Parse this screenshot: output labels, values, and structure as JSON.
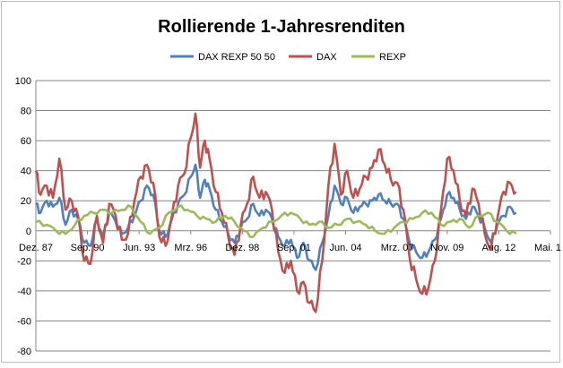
{
  "chart_data": {
    "type": "line",
    "title": "Rollierende 1-Jahresrenditen",
    "xlabel": "",
    "ylabel": "",
    "ylim": [
      -80,
      100
    ],
    "y_ticks": [
      -80,
      -60,
      -40,
      -20,
      0,
      20,
      40,
      60,
      80,
      100
    ],
    "x_range": [
      1987.92,
      2015.33
    ],
    "x_ticks": [
      {
        "label": "Dez. 87",
        "x": 1987.92
      },
      {
        "label": "Sep. 90",
        "x": 1990.67
      },
      {
        "label": "Jun. 93",
        "x": 1993.42
      },
      {
        "label": "Mrz. 96",
        "x": 1996.17
      },
      {
        "label": "Dez. 98",
        "x": 1998.92
      },
      {
        "label": "Sep. 01",
        "x": 2001.67
      },
      {
        "label": "Jun. 04",
        "x": 2004.42
      },
      {
        "label": "Mrz. 07",
        "x": 2007.17
      },
      {
        "label": "Nov. 09",
        "x": 2009.83
      },
      {
        "label": "Aug. 12",
        "x": 2012.58
      },
      {
        "label": "Mai. 15",
        "x": 2015.33
      }
    ],
    "grid": true,
    "legend_position": "top",
    "series": [
      {
        "name": "DAX REXP 50 50",
        "color": "#4f81bd",
        "x": [
          1987.92,
          1988.17,
          1988.5,
          1988.83,
          1989.17,
          1989.5,
          1989.83,
          1990.17,
          1990.5,
          1990.83,
          1991.17,
          1991.5,
          1991.83,
          1992.17,
          1992.5,
          1992.83,
          1993.17,
          1993.5,
          1993.83,
          1994.17,
          1994.5,
          1994.83,
          1995.17,
          1995.5,
          1995.83,
          1996.17,
          1996.42,
          1996.67,
          1996.92,
          1997.17,
          1997.5,
          1997.83,
          1998.17,
          1998.5,
          1998.83,
          1999.17,
          1999.5,
          1999.83,
          2000.17,
          2000.5,
          2000.83,
          2001.17,
          2001.5,
          2001.83,
          2002.17,
          2002.5,
          2002.83,
          2003.17,
          2003.5,
          2003.83,
          2004.17,
          2004.5,
          2004.83,
          2005.17,
          2005.5,
          2005.83,
          2006.17,
          2006.5,
          2006.83,
          2007.17,
          2007.5,
          2007.83,
          2008.17,
          2008.5,
          2008.83,
          2009.17,
          2009.5,
          2009.83,
          2010.17,
          2010.5,
          2010.83,
          2011.17,
          2011.5,
          2011.83,
          2012.17,
          2012.5,
          2012.83,
          2013.17,
          2013.5
        ],
        "values": [
          18,
          12,
          20,
          16,
          22,
          4,
          14,
          8,
          -8,
          -10,
          8,
          -4,
          12,
          6,
          -2,
          2,
          10,
          20,
          30,
          24,
          0,
          -4,
          8,
          18,
          24,
          36,
          44,
          22,
          34,
          28,
          14,
          6,
          -2,
          -8,
          2,
          8,
          18,
          10,
          14,
          8,
          -4,
          -10,
          -6,
          -18,
          -8,
          -20,
          -26,
          -8,
          10,
          30,
          18,
          22,
          12,
          16,
          18,
          20,
          24,
          20,
          18,
          18,
          8,
          -8,
          -14,
          -18,
          -14,
          -6,
          8,
          24,
          22,
          14,
          8,
          16,
          10,
          2,
          -8,
          4,
          10,
          16,
          12
        ]
      },
      {
        "name": "DAX",
        "color": "#c0504d",
        "x": [
          1987.92,
          1988.17,
          1988.5,
          1988.83,
          1989.17,
          1989.5,
          1989.83,
          1990.17,
          1990.5,
          1990.83,
          1991.17,
          1991.5,
          1991.83,
          1992.17,
          1992.5,
          1992.83,
          1993.17,
          1993.5,
          1993.83,
          1994.17,
          1994.5,
          1994.83,
          1995.17,
          1995.5,
          1995.83,
          1996.17,
          1996.42,
          1996.67,
          1996.92,
          1997.17,
          1997.5,
          1997.83,
          1998.17,
          1998.5,
          1998.83,
          1999.17,
          1999.5,
          1999.83,
          2000.17,
          2000.5,
          2000.83,
          2001.17,
          2001.5,
          2001.83,
          2002.17,
          2002.5,
          2002.83,
          2003.17,
          2003.5,
          2003.83,
          2004.17,
          2004.5,
          2004.83,
          2005.17,
          2005.5,
          2005.83,
          2006.17,
          2006.5,
          2006.83,
          2007.17,
          2007.5,
          2007.83,
          2008.17,
          2008.5,
          2008.83,
          2009.17,
          2009.5,
          2009.83,
          2010.17,
          2010.5,
          2010.83,
          2011.17,
          2011.5,
          2011.83,
          2012.17,
          2012.5,
          2012.83,
          2013.17,
          2013.5
        ],
        "values": [
          40,
          24,
          30,
          22,
          48,
          14,
          20,
          10,
          -20,
          -22,
          10,
          -8,
          18,
          10,
          -6,
          -2,
          20,
          36,
          44,
          32,
          -4,
          -10,
          10,
          30,
          38,
          62,
          78,
          42,
          60,
          48,
          26,
          12,
          -4,
          -16,
          4,
          18,
          36,
          22,
          26,
          14,
          -14,
          -28,
          -20,
          -40,
          -34,
          -48,
          -54,
          -20,
          30,
          58,
          24,
          40,
          22,
          28,
          36,
          42,
          54,
          44,
          34,
          32,
          14,
          -18,
          -32,
          -42,
          -38,
          -20,
          14,
          48,
          40,
          20,
          10,
          28,
          18,
          -2,
          -12,
          8,
          26,
          32,
          26
        ]
      },
      {
        "name": "REXP",
        "color": "#9bbb59",
        "x": [
          1987.92,
          1988.5,
          1989.0,
          1989.5,
          1990.0,
          1990.5,
          1991.0,
          1991.5,
          1992.0,
          1992.5,
          1993.0,
          1993.5,
          1994.0,
          1994.5,
          1995.0,
          1995.5,
          1996.0,
          1996.5,
          1997.0,
          1997.5,
          1998.0,
          1998.5,
          1999.0,
          1999.5,
          2000.0,
          2000.5,
          2001.0,
          2001.5,
          2002.0,
          2002.5,
          2003.0,
          2003.5,
          2004.0,
          2004.5,
          2005.0,
          2005.5,
          2006.0,
          2006.5,
          2007.0,
          2007.5,
          2008.0,
          2008.5,
          2009.0,
          2009.5,
          2010.0,
          2010.5,
          2011.0,
          2011.5,
          2012.0,
          2012.5,
          2013.0,
          2013.5
        ],
        "values": [
          6,
          4,
          0,
          -2,
          4,
          10,
          12,
          14,
          12,
          14,
          16,
          6,
          -2,
          2,
          12,
          16,
          14,
          10,
          8,
          6,
          10,
          6,
          0,
          -4,
          2,
          6,
          10,
          12,
          8,
          4,
          6,
          2,
          4,
          8,
          6,
          4,
          0,
          -2,
          2,
          6,
          8,
          12,
          12,
          4,
          6,
          8,
          2,
          10,
          12,
          6,
          0,
          -2
        ]
      }
    ]
  }
}
